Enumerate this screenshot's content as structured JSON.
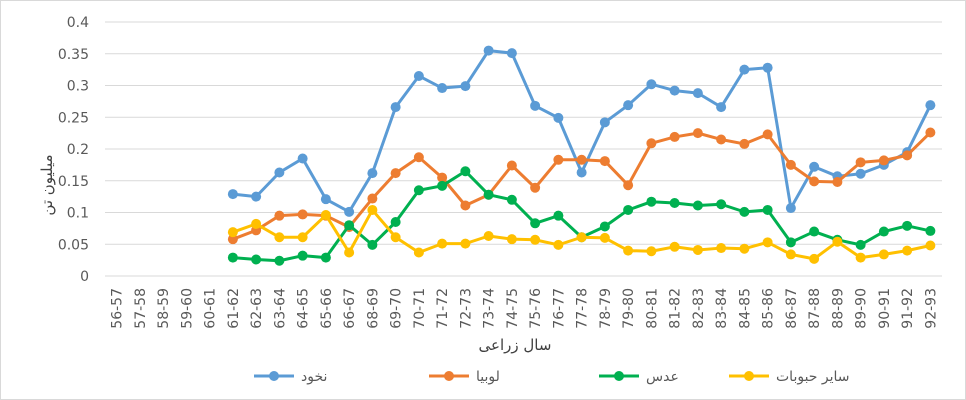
{
  "chart_data": {
    "type": "line",
    "title": "",
    "xlabel": "سال زراعی",
    "ylabel": "میلیون تن",
    "ylim": [
      0,
      0.4
    ],
    "yticks": [
      "0",
      "0.05",
      "0.1",
      "0.15",
      "0.2",
      "0.25",
      "0.3",
      "0.35",
      "0.4"
    ],
    "grid": true,
    "legend_position": "bottom",
    "categories": [
      "56-57",
      "57-58",
      "58-59",
      "59-60",
      "60-61",
      "61-62",
      "62-63",
      "63-64",
      "64-65",
      "65-66",
      "66-67",
      "68-69",
      "69-70",
      "70-71",
      "71-72",
      "72-73",
      "73-74",
      "74-75",
      "75-76",
      "76-77",
      "77-78",
      "78-79",
      "79-80",
      "80-81",
      "81-82",
      "82-83",
      "83-84",
      "84-85",
      "85-86",
      "86-87",
      "87-88",
      "88-89",
      "89-90",
      "90-91",
      "91-92",
      "92-93"
    ],
    "series": [
      {
        "name": "نخود",
        "color": "#5b9bd5",
        "values": [
          null,
          null,
          null,
          null,
          null,
          0.129,
          0.125,
          0.163,
          0.185,
          0.121,
          0.101,
          0.162,
          0.266,
          0.315,
          0.296,
          0.299,
          0.355,
          0.351,
          0.268,
          0.249,
          0.163,
          0.242,
          0.269,
          0.302,
          0.292,
          0.288,
          0.266,
          0.325,
          0.328,
          0.107,
          0.172,
          0.157,
          0.161,
          0.175,
          0.195,
          0.269
        ]
      },
      {
        "name": "لوبیا",
        "color": "#ed7d31",
        "values": [
          null,
          null,
          null,
          null,
          null,
          0.058,
          0.072,
          0.095,
          0.097,
          0.095,
          0.077,
          0.122,
          0.162,
          0.187,
          0.155,
          0.111,
          0.128,
          0.174,
          0.139,
          0.183,
          0.183,
          0.181,
          0.143,
          0.209,
          0.219,
          0.225,
          0.215,
          0.208,
          0.223,
          0.175,
          0.149,
          0.148,
          0.179,
          0.182,
          0.19,
          0.226
        ]
      },
      {
        "name": "عدس",
        "color": "#00b050",
        "values": [
          null,
          null,
          null,
          null,
          null,
          0.029,
          0.026,
          0.024,
          0.032,
          0.029,
          0.08,
          0.049,
          0.085,
          0.135,
          0.142,
          0.165,
          0.128,
          0.12,
          0.083,
          0.095,
          0.061,
          0.078,
          0.104,
          0.117,
          0.115,
          0.111,
          0.113,
          0.101,
          0.104,
          0.053,
          0.07,
          0.057,
          0.049,
          0.07,
          0.079,
          0.071
        ]
      },
      {
        "name": "سایر حبوبات",
        "color": "#ffc000",
        "values": [
          null,
          null,
          null,
          null,
          null,
          0.069,
          0.082,
          0.061,
          0.061,
          0.096,
          0.037,
          0.104,
          0.061,
          0.037,
          0.051,
          0.051,
          0.063,
          0.058,
          0.057,
          0.049,
          0.061,
          0.06,
          0.04,
          0.039,
          0.046,
          0.041,
          0.044,
          0.043,
          0.053,
          0.034,
          0.027,
          0.054,
          0.029,
          0.034,
          0.04,
          0.048
        ]
      }
    ]
  }
}
